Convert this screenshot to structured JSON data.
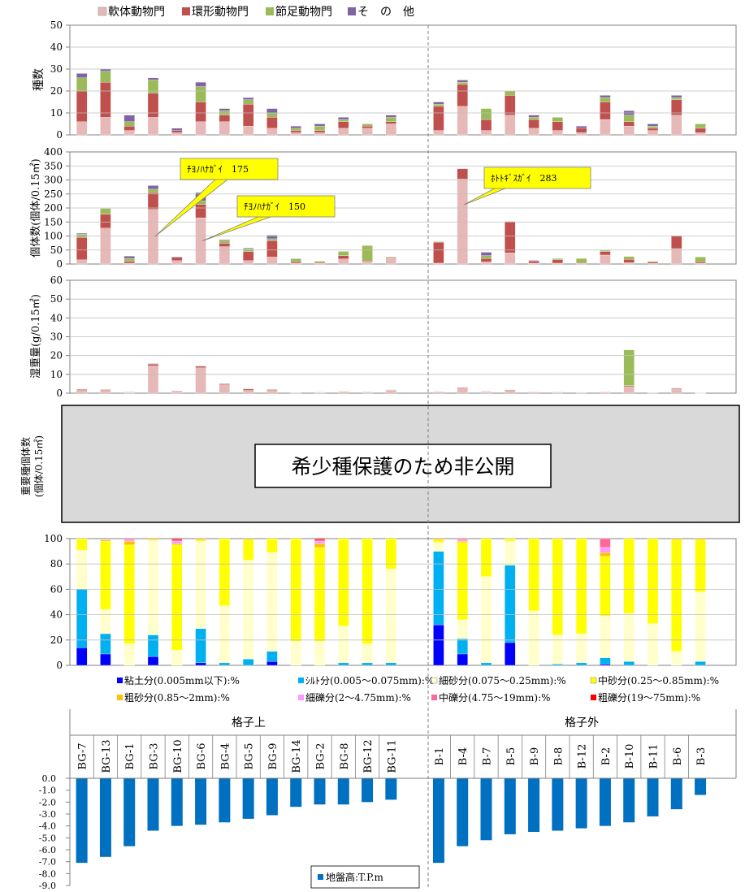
{
  "sites": {
    "left_group": "格子上",
    "right_group": "格子外",
    "left": [
      "BG-7",
      "BG-13",
      "BG-1",
      "BG-3",
      "BG-10",
      "BG-6",
      "BG-4",
      "BG-5",
      "BG-9",
      "BG-14",
      "BG-2",
      "BG-8",
      "BG-12",
      "BG-11"
    ],
    "right": [
      "B-1",
      "B-4",
      "B-7",
      "B-5",
      "B-9",
      "B-8",
      "B-12",
      "B-2",
      "B-10",
      "B-11",
      "B-6",
      "B-3"
    ]
  },
  "colors": {
    "mollusca": "#e6b8b7",
    "annelida": "#c0504d",
    "arthropoda": "#9bbb59",
    "other": "#8064a2",
    "clay": "#0000ff",
    "silt": "#00b0f0",
    "fine_sand": "#ffffcc",
    "medium_sand": "#ffff00",
    "coarse_sand": "#ffc000",
    "fine_gravel": "#ff99ff",
    "medium_gravel": "#ff6699",
    "coarse_gravel": "#ff0000",
    "elevation": "#0070c0",
    "gray_panel": "#d9d9d9"
  },
  "legend_top": [
    "軟体動物門",
    "環形動物門",
    "節足動物門",
    "そ　の　他"
  ],
  "chart_data": [
    {
      "type": "bar",
      "stacked": true,
      "ylabel": "種数",
      "ylim": [
        0,
        50
      ],
      "yticks": [
        0,
        10,
        20,
        30,
        40,
        50
      ],
      "series": [
        {
          "name": "軟体動物門",
          "values": [
            6,
            8,
            2,
            8,
            1,
            6,
            6,
            4,
            3,
            1,
            1,
            3,
            3,
            5,
            2,
            13,
            2,
            9,
            3,
            2,
            1,
            7,
            4,
            2,
            9,
            1
          ]
        },
        {
          "name": "環形動物門",
          "values": [
            14,
            16,
            2,
            11,
            1,
            9,
            3,
            10,
            5,
            1,
            1,
            3,
            1,
            1,
            11,
            10,
            5,
            9,
            4,
            4,
            2,
            8,
            2,
            1,
            7,
            2
          ]
        },
        {
          "name": "節足動物門",
          "values": [
            6,
            5,
            2,
            6,
            0,
            7,
            2,
            2,
            2,
            1,
            2,
            1,
            1,
            2,
            1,
            1,
            5,
            2,
            1,
            2,
            0,
            2,
            3,
            1,
            1,
            2
          ]
        },
        {
          "name": "そ　の　他",
          "values": [
            2,
            1,
            3,
            1,
            1,
            2,
            1,
            1,
            2,
            1,
            1,
            1,
            0,
            1,
            1,
            1,
            0,
            0,
            1,
            0,
            1,
            1,
            2,
            1,
            1,
            0
          ]
        }
      ]
    },
    {
      "type": "bar",
      "stacked": true,
      "ylabel": "個体数(個体/0.15㎡)",
      "ylim": [
        0,
        400
      ],
      "yticks": [
        0,
        50,
        100,
        150,
        200,
        250,
        300,
        350,
        400
      ],
      "series": [
        {
          "name": "軟体動物門",
          "values": [
            15,
            128,
            3,
            195,
            12,
            165,
            62,
            12,
            25,
            3,
            2,
            18,
            8,
            20,
            3,
            303,
            8,
            40,
            3,
            3,
            2,
            32,
            5,
            2,
            55,
            3
          ]
        },
        {
          "name": "環形動物門",
          "values": [
            80,
            50,
            7,
            60,
            12,
            48,
            12,
            32,
            58,
            5,
            3,
            12,
            3,
            3,
            75,
            37,
            12,
            110,
            8,
            12,
            3,
            12,
            12,
            5,
            45,
            5
          ]
        },
        {
          "name": "節足動物門",
          "values": [
            12,
            20,
            10,
            12,
            0,
            12,
            10,
            10,
            7,
            10,
            5,
            15,
            55,
            2,
            2,
            0,
            10,
            2,
            0,
            5,
            15,
            5,
            10,
            3,
            2,
            17
          ]
        },
        {
          "name": "そ　の　他",
          "values": [
            3,
            2,
            8,
            13,
            2,
            30,
            3,
            3,
            13,
            2,
            0,
            0,
            0,
            0,
            0,
            0,
            12,
            0,
            2,
            0,
            0,
            0,
            0,
            0,
            0,
            0
          ]
        }
      ],
      "annotations": [
        {
          "label": "ﾁﾖﾉﾊﾅｶﾞｲ　175",
          "site": "BG-3"
        },
        {
          "label": "ﾁﾖﾉﾊﾅｶﾞｲ　150",
          "site": "BG-6"
        },
        {
          "label": "ﾎﾄﾄｷﾞｽｶﾞｲ　283",
          "site": "B-4"
        }
      ]
    },
    {
      "type": "bar",
      "stacked": true,
      "ylabel": "湿重量(g/0.15㎡)",
      "ylim": [
        0,
        60
      ],
      "yticks": [
        0,
        10,
        20,
        30,
        40,
        50,
        60
      ],
      "series": [
        {
          "name": "軟体動物門",
          "values": [
            1.5,
            1.5,
            0.3,
            14.5,
            0.8,
            13.5,
            4.5,
            1.5,
            1.5,
            0.2,
            0.3,
            0.5,
            0.3,
            1.5,
            0.5,
            2.8,
            0.5,
            1.5,
            0.5,
            0.3,
            0.3,
            0.3,
            3.5,
            0.2,
            2.0,
            0.1
          ]
        },
        {
          "name": "環形動物門",
          "values": [
            0.5,
            0.5,
            0.2,
            1.0,
            0.3,
            0.8,
            0.5,
            0.8,
            0.5,
            0.1,
            0.2,
            0.4,
            0.2,
            0.3,
            0.3,
            0.3,
            0.3,
            0.3,
            0.2,
            0.3,
            0.1,
            0.3,
            0.5,
            0.1,
            0.5,
            0.1
          ]
        },
        {
          "name": "節足動物門",
          "values": [
            0.2,
            0.1,
            0.1,
            0.3,
            0,
            0.2,
            0.2,
            0.1,
            0.1,
            0.1,
            0.1,
            0.1,
            0.3,
            0.1,
            0,
            0,
            0.1,
            0,
            0,
            0.1,
            0.1,
            0,
            19.0,
            0,
            0,
            0.1
          ]
        },
        {
          "name": "そ　の　他",
          "values": [
            0,
            0,
            0.1,
            0.1,
            0,
            0.1,
            0,
            0,
            0.1,
            0,
            0,
            0,
            0,
            0,
            0,
            0,
            0.1,
            0,
            0,
            0,
            0,
            0,
            0,
            0,
            0,
            0
          ]
        }
      ]
    },
    {
      "type": "bar",
      "stacked": true,
      "ylim": [
        0,
        100
      ],
      "yticks": [
        0,
        20,
        40,
        60,
        80,
        100
      ],
      "series": [
        {
          "name": "粘土分(0.005mm以下):%",
          "values": [
            14,
            9,
            0,
            7,
            0,
            2,
            0,
            0,
            3,
            0,
            0,
            0,
            0,
            0,
            32,
            9,
            0,
            18,
            0,
            0,
            0,
            1,
            0,
            0,
            0,
            0
          ]
        },
        {
          "name": "ｼﾙﾄ分(0.005～0.075mm):%",
          "values": [
            46,
            16,
            0,
            17,
            0,
            27,
            2,
            5,
            8,
            0,
            0,
            2,
            2,
            2,
            58,
            12,
            2,
            61,
            0,
            1,
            2,
            5,
            3,
            0,
            0,
            3
          ]
        },
        {
          "name": "細砂分(0.075～0.25mm):%",
          "values": [
            31,
            19,
            17,
            75,
            12,
            69,
            45,
            78,
            78,
            19,
            19,
            29,
            15,
            74,
            7,
            15,
            68,
            19,
            43,
            23,
            23,
            33,
            38,
            33,
            11,
            55
          ]
        },
        {
          "name": "中砂分(0.25～0.85mm):%",
          "values": [
            9,
            54,
            78,
            0,
            83,
            1,
            53,
            16,
            11,
            81,
            74,
            69,
            83,
            24,
            2,
            61,
            30,
            2,
            57,
            76,
            75,
            47,
            59,
            67,
            88,
            41
          ]
        },
        {
          "name": "粗砂分(0.85～2mm):%",
          "values": [
            0,
            1,
            3,
            1,
            1,
            1,
            0,
            1,
            0,
            0,
            3,
            0,
            0,
            0,
            1,
            1,
            0,
            0,
            0,
            0,
            0,
            3,
            0,
            0,
            1,
            1
          ]
        },
        {
          "name": "細礫分(2～4.75mm):%",
          "values": [
            0,
            0,
            1,
            0,
            2,
            0,
            0,
            0,
            0,
            0,
            2,
            0,
            0,
            0,
            0,
            1,
            0,
            0,
            0,
            0,
            0,
            4,
            0,
            0,
            0,
            0
          ]
        },
        {
          "name": "中礫分(4.75～19mm):%",
          "values": [
            0,
            0,
            1,
            0,
            1,
            0,
            0,
            0,
            0,
            0,
            1,
            0,
            0,
            0,
            0,
            1,
            0,
            0,
            0,
            0,
            0,
            7,
            0,
            0,
            0,
            0
          ]
        },
        {
          "name": "粗礫分(19～75mm):%",
          "values": [
            0,
            0,
            0,
            0,
            1,
            0,
            0,
            0,
            0,
            0,
            1,
            0,
            0,
            0,
            0,
            0,
            0,
            0,
            0,
            0,
            0,
            0,
            0,
            0,
            0,
            0
          ]
        }
      ]
    },
    {
      "type": "bar",
      "ylim": [
        -9,
        0
      ],
      "yticks": [
        0,
        -1,
        -2,
        -3,
        -4,
        -5,
        -6,
        -7,
        -8,
        -9
      ],
      "series": [
        {
          "name": "地盤高:T.P.m",
          "values": [
            -7.1,
            -6.6,
            -5.7,
            -4.4,
            -4.0,
            -3.9,
            -3.7,
            -3.4,
            -3.1,
            -2.4,
            -2.2,
            -2.2,
            -2.0,
            -1.8,
            -7.1,
            -5.7,
            -5.2,
            -4.7,
            -4.5,
            -4.4,
            -4.2,
            -4.0,
            -3.7,
            -3.2,
            -2.6,
            -1.4
          ]
        }
      ]
    }
  ],
  "gray_panel": {
    "ylabel_line1": "重要種個体数",
    "ylabel_line2": "(個体/0.15㎡)",
    "notice": "希少種保護のため非公開"
  },
  "tick_labels": {
    "c1": [
      "0",
      "10",
      "20",
      "30",
      "40",
      "50"
    ],
    "c2": [
      "0",
      "50",
      "100",
      "150",
      "200",
      "250",
      "300",
      "350",
      "400"
    ],
    "c3": [
      "0",
      "10",
      "20",
      "30",
      "40",
      "50",
      "60"
    ],
    "c4": [
      "0",
      "20",
      "40",
      "60",
      "80",
      "100"
    ],
    "c5": [
      "0.0",
      "-1.0",
      "-2.0",
      "-3.0",
      "-4.0",
      "-5.0",
      "-6.0",
      "-7.0",
      "-8.0",
      "-9.0"
    ]
  }
}
